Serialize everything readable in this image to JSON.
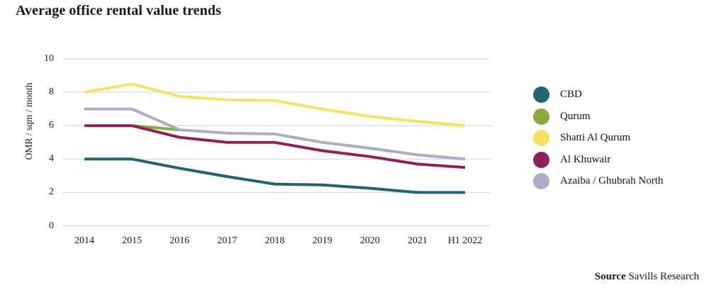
{
  "source": {
    "label": "Source",
    "text": "Savills Research"
  },
  "colors": {
    "background": "#ffffff",
    "grid": "#d4d4d4",
    "text": "#1a1a1a"
  },
  "chart_data": {
    "type": "line",
    "title": "Average office rental value trends",
    "xlabel": "",
    "ylabel": "OMR / sqm / month",
    "ylim": [
      0,
      10
    ],
    "yticks": [
      10,
      8,
      6,
      4,
      2,
      0
    ],
    "grid": "horizontal",
    "legend_position": "right",
    "categories": [
      "2014",
      "2015",
      "2016",
      "2017",
      "2018",
      "2019",
      "2020",
      "2021",
      "H1 2022"
    ],
    "series": [
      {
        "name": "CBD",
        "color": "#23656f",
        "values": [
          4,
          4,
          3.45,
          2.95,
          2.5,
          2.45,
          2.25,
          2,
          2
        ]
      },
      {
        "name": "Qurum",
        "color": "#8aac3c",
        "values": [
          null,
          6,
          5.75,
          null,
          null,
          null,
          null,
          null,
          null
        ]
      },
      {
        "name": "Shatti Al Qurum",
        "color": "#f6e262",
        "values": [
          8,
          8.5,
          7.75,
          7.55,
          7.5,
          7,
          6.55,
          6.25,
          6
        ]
      },
      {
        "name": "Al Khuwair",
        "color": "#8e2158",
        "values": [
          6,
          6,
          5.3,
          5,
          5,
          4.5,
          4.15,
          3.7,
          3.5
        ]
      },
      {
        "name": "Azaiba / Ghubrah North",
        "color": "#a9aec6",
        "values": [
          7,
          7,
          5.75,
          5.55,
          5.5,
          5,
          4.65,
          4.25,
          4
        ]
      }
    ]
  }
}
